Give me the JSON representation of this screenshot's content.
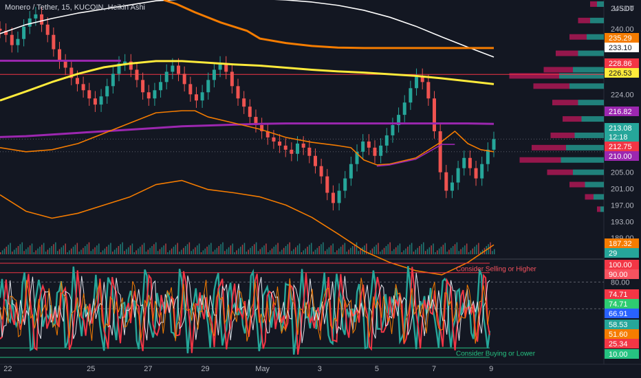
{
  "header": {
    "title": "Monero / Tether, 15, KUCOIN, Heikin Ashi",
    "currency": "USDT"
  },
  "chart_data": {
    "type": "candlestick",
    "symbol": "Monero / Tether",
    "interval": "15",
    "exchange": "KUCOIN",
    "chart_style": "Heikin Ashi",
    "currency": "USDT",
    "price_axis": {
      "range": [
        185,
        247
      ],
      "ticks": [
        "245.00",
        "240.00",
        "224.00",
        "205.00",
        "201.00",
        "197.00",
        "193.00",
        "189.00"
      ]
    },
    "price_tags": [
      {
        "label": "235.29",
        "value": 235.29,
        "color": "#f57c00"
      },
      {
        "label": "233.10",
        "value": 233.1,
        "color": "#ffffff"
      },
      {
        "label": "228.86",
        "value": 228.86,
        "color": "#f23645"
      },
      {
        "label": "226.53",
        "value": 226.53,
        "color": "#ffeb3b"
      },
      {
        "label": "216.82",
        "value": 216.82,
        "color": "#9c27b0"
      },
      {
        "label": "213.08",
        "value": 213.08,
        "color": "#26a69a"
      },
      {
        "label": "12:18",
        "value": 213.08,
        "color": "#26a69a"
      },
      {
        "label": "212.75",
        "value": 212.75,
        "color": "#f23645"
      },
      {
        "label": "210.00",
        "value": 210.0,
        "color": "#9c27b0"
      },
      {
        "label": "187.32",
        "value": 187.32,
        "color": "#f57c00"
      }
    ],
    "horizontal_lines": [
      {
        "name": "level-228",
        "value": 228.86,
        "color": "#f23645"
      }
    ],
    "series": [
      {
        "name": "white-ma",
        "color": "#ffffff",
        "x": [
          0,
          1,
          2,
          3,
          4,
          5,
          6,
          7,
          8,
          9,
          10,
          11,
          12,
          13,
          14,
          15,
          16,
          17,
          18,
          19
        ],
        "y": [
          238.8,
          241.0,
          242.5,
          243.8,
          244.8,
          245.8,
          246.8,
          247.2,
          247.5,
          247.5,
          247.3,
          247.0,
          246.5,
          245.7,
          244.5,
          242.8,
          240.6,
          238.0,
          235.5,
          233.1
        ]
      },
      {
        "name": "orange-upper",
        "color": "#f57c00",
        "x": [
          6.3,
          6.8,
          7.5,
          8.5,
          9.5,
          10.0,
          11.0,
          12.0,
          13.0,
          14.0,
          15.0,
          16.0,
          17.0,
          18.0,
          19.0
        ],
        "y": [
          247.0,
          246.0,
          244.0,
          241.5,
          239.5,
          237.6,
          236.5,
          235.8,
          235.4,
          235.3,
          235.3,
          235.3,
          235.3,
          235.3,
          235.3
        ]
      },
      {
        "name": "yellow-ma",
        "color": "#ffeb3b",
        "x": [
          0,
          1,
          2,
          3,
          4,
          5,
          6,
          7,
          8,
          9,
          10,
          11,
          12,
          13,
          14,
          15,
          16,
          17,
          18,
          19
        ],
        "y": [
          222.5,
          224.7,
          227.0,
          229.0,
          230.6,
          231.5,
          232.1,
          232.1,
          231.7,
          231.3,
          231.0,
          230.5,
          230.0,
          229.6,
          229.3,
          228.9,
          228.5,
          227.9,
          227.2,
          226.5
        ]
      },
      {
        "name": "purple-upper",
        "color": "#9c27b0",
        "x": [
          0,
          4.65
        ],
        "y": [
          232.2,
          232.2
        ]
      },
      {
        "name": "purple-ma",
        "color": "#9c27b0",
        "x": [
          0,
          1,
          2,
          3,
          4,
          5,
          6,
          7,
          8,
          9,
          10,
          11,
          12,
          13,
          14,
          15,
          16,
          17,
          18,
          19
        ],
        "y": [
          213.6,
          213.8,
          214.2,
          214.6,
          215.0,
          215.4,
          215.8,
          216.2,
          216.4,
          216.6,
          216.8,
          216.9,
          216.9,
          216.9,
          216.9,
          216.9,
          216.9,
          216.9,
          216.9,
          216.8
        ]
      },
      {
        "name": "orange-mid",
        "color": "#f57c00",
        "x": [
          0,
          1,
          2,
          3,
          4,
          5,
          6,
          7,
          7.5,
          8,
          9,
          10,
          11,
          12,
          13,
          13.5,
          14,
          14.5,
          15,
          16,
          17,
          17.5,
          18,
          18.5,
          19
        ],
        "y": [
          211.0,
          210.0,
          210.5,
          212.0,
          214.5,
          217.0,
          219.5,
          220.0,
          220.0,
          218.5,
          217.0,
          215.5,
          213.5,
          212.3,
          211.5,
          211.0,
          208.0,
          206.8,
          207.0,
          208.5,
          212.5,
          215.0,
          212.0,
          210.5,
          210.0
        ]
      },
      {
        "name": "purple-lower",
        "color": "#9c27b0",
        "x": [
          14.5,
          15.0,
          16.0,
          17.0,
          17.5
        ],
        "y": [
          206.5,
          206.8,
          208.2,
          211.8,
          211.8
        ]
      },
      {
        "name": "orange-lower",
        "color": "#f57c00",
        "x": [
          0,
          1,
          2,
          3,
          4,
          5,
          6,
          7,
          8,
          9,
          10,
          11,
          12,
          13,
          14,
          15,
          16,
          17,
          18,
          19
        ],
        "y": [
          199.5,
          195.5,
          193.8,
          195.0,
          197.0,
          199.0,
          202.0,
          203.0,
          200.8,
          200.0,
          199.0,
          197.0,
          194.0,
          190.0,
          185.8,
          183.0,
          181.0,
          180.0,
          183.0,
          187.3
        ]
      }
    ],
    "candles": {
      "x_range": [
        0,
        19
      ],
      "close": [
        239.5,
        238.5,
        236.0,
        237.5,
        240.5,
        242.5,
        243.5,
        241.0,
        238.5,
        235.0,
        232.0,
        230.5,
        228.0,
        226.5,
        225.0,
        223.0,
        221.5,
        223.5,
        226.0,
        229.0,
        231.5,
        232.0,
        230.0,
        227.5,
        224.5,
        223.0,
        225.0,
        227.0,
        229.5,
        231.0,
        229.0,
        226.5,
        224.0,
        222.5,
        224.5,
        227.5,
        230.0,
        231.5,
        229.5,
        226.0,
        223.0,
        221.0,
        218.5,
        216.5,
        215.0,
        213.5,
        212.5,
        211.5,
        210.5,
        209.5,
        212.0,
        211.0,
        209.0,
        206.5,
        204.0,
        200.0,
        197.5,
        200.5,
        203.5,
        207.0,
        210.0,
        212.5,
        211.0,
        209.0,
        211.5,
        214.0,
        216.5,
        219.0,
        222.0,
        225.5,
        228.5,
        227.0,
        223.0,
        215.0,
        205.0,
        200.5,
        202.5,
        206.0,
        208.5,
        206.0,
        203.5,
        207.0,
        210.5,
        213.08
      ]
    },
    "volume_profile": {
      "price": [
        246,
        242,
        238,
        234,
        230,
        228.5,
        226,
        222,
        218,
        214,
        211,
        208,
        205,
        202,
        199,
        196
      ],
      "buy": [
        8,
        16,
        20,
        30,
        36,
        52,
        40,
        30,
        26,
        34,
        44,
        50,
        36,
        22,
        12,
        4
      ],
      "sell": [
        8,
        14,
        20,
        26,
        34,
        58,
        42,
        30,
        22,
        28,
        40,
        48,
        30,
        18,
        10,
        4
      ]
    },
    "x_axis": {
      "ticks": [
        {
          "label": "22",
          "x": 0.3
        },
        {
          "label": "25",
          "x": 3.5
        },
        {
          "label": "27",
          "x": 5.7
        },
        {
          "label": "29",
          "x": 7.9
        },
        {
          "label": "May",
          "x": 10.1
        },
        {
          "label": "3",
          "x": 12.3
        },
        {
          "label": "5",
          "x": 14.5
        },
        {
          "label": "7",
          "x": 16.7
        },
        {
          "label": "9",
          "x": 18.9
        }
      ]
    },
    "volume": {
      "tag": "29"
    },
    "oscillator": {
      "range": [
        0,
        100
      ],
      "ticks": [
        "80.00"
      ],
      "levels": [
        {
          "value": 100,
          "color": "#f23645"
        },
        {
          "value": 90,
          "color": "#f23645"
        },
        {
          "value": 10,
          "color": "#26c281"
        },
        {
          "value": 0,
          "color": "#26c281"
        }
      ],
      "zones": [
        {
          "label": "Consider Selling or Higher",
          "value": 90,
          "color": "#f7525f"
        },
        {
          "label": "Consider Buying or Lower",
          "value": 10,
          "color": "#26c281"
        }
      ],
      "tags": [
        {
          "label": "100.00",
          "value": 100,
          "color": "#f23645"
        },
        {
          "label": "90.00",
          "value": 90,
          "color": "#f7525f"
        },
        {
          "label": "74.71",
          "value": 74.71,
          "color": "#f23645"
        },
        {
          "label": "74.71",
          "value": 74.71,
          "color": "#2ecc71"
        },
        {
          "label": "66.91",
          "value": 66.91,
          "color": "#2962ff"
        },
        {
          "label": "58.53",
          "value": 58.53,
          "color": "#26a69a"
        },
        {
          "label": "51.60",
          "value": 51.6,
          "color": "#f57c00"
        },
        {
          "label": "25.34",
          "value": 25.34,
          "color": "#f23645"
        },
        {
          "label": "10.00",
          "value": 10,
          "color": "#26c281"
        }
      ]
    },
    "colors": {
      "background": "#131722",
      "up": "#26a69a",
      "down": "#ef5350",
      "grid": "#2a2e39",
      "axis_text": "#b2b5be"
    }
  }
}
